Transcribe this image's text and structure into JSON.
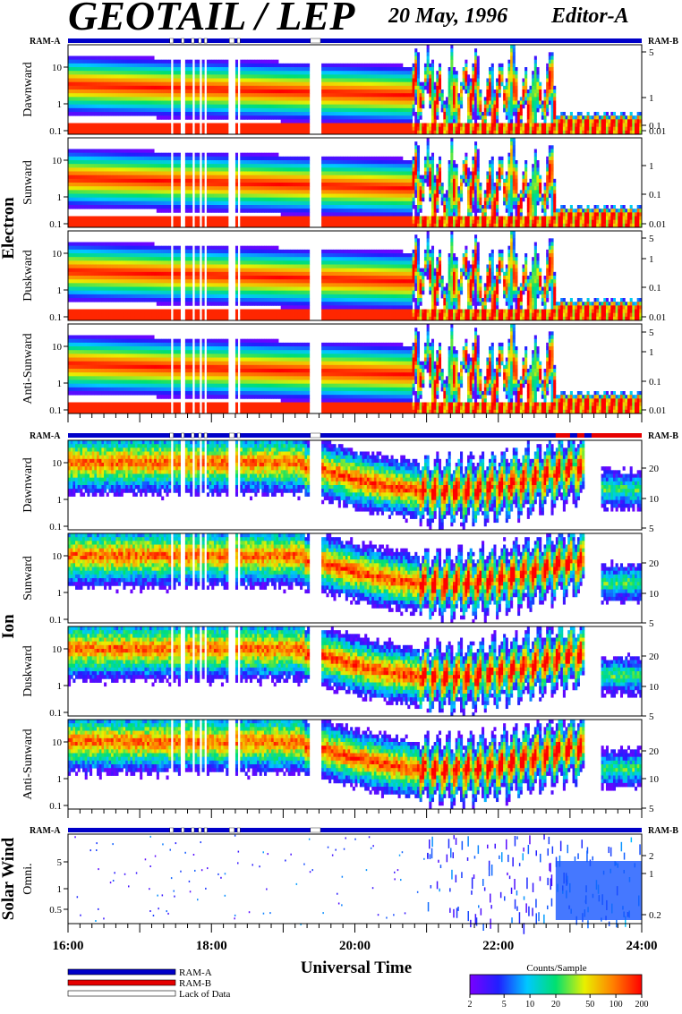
{
  "header": {
    "title": "GEOTAIL / LEP",
    "date": "20 May, 1996",
    "editor": "Editor-A"
  },
  "ram_a_label": "RAM-A",
  "ram_b_label": "RAM-B",
  "species_labels": [
    "Electron",
    "Ion",
    "Solar Wind"
  ],
  "x_axis": {
    "title": "Universal Time",
    "ticks": [
      "16:00",
      "18:00",
      "20:00",
      "22:00",
      "24:00"
    ],
    "range_hours": [
      16,
      24
    ]
  },
  "legend": {
    "items": [
      {
        "label": "RAM-A",
        "color": "#0000c8"
      },
      {
        "label": "RAM-B",
        "color": "#e60000"
      },
      {
        "label": "Lack of Data",
        "color": "#ffffff"
      }
    ]
  },
  "colorbar": {
    "title": "Counts/Sample",
    "ticks": [
      "2",
      "5",
      "10",
      "20",
      "50",
      "100",
      "200"
    ],
    "colors": [
      "#7a00ff",
      "#2020ff",
      "#00c8ff",
      "#00e070",
      "#e8f000",
      "#ff8000",
      "#ff0000"
    ]
  },
  "data_gaps_hours": [
    [
      17.42,
      17.47
    ],
    [
      17.58,
      17.62
    ],
    [
      17.72,
      17.76
    ],
    [
      17.82,
      17.86
    ],
    [
      17.9,
      17.94
    ],
    [
      18.25,
      18.32
    ],
    [
      18.36,
      18.4
    ],
    [
      19.38,
      19.52
    ]
  ],
  "chart_data": [
    {
      "type": "heatmap",
      "group": "Electron",
      "ylabel": "Dawnward",
      "left_ticks": [
        "10",
        "1",
        "0.1"
      ],
      "right_ticks": [
        "5",
        "1",
        "0.1",
        "0.01"
      ]
    },
    {
      "type": "heatmap",
      "group": "Electron",
      "ylabel": "Sunward",
      "left_ticks": [
        "10",
        "1",
        "0.1"
      ],
      "right_ticks": [
        "1",
        "0.1",
        "0.01"
      ]
    },
    {
      "type": "heatmap",
      "group": "Electron",
      "ylabel": "Duskward",
      "left_ticks": [
        "10",
        "1",
        "0.1"
      ],
      "right_ticks": [
        "5",
        "1",
        "0.1",
        "0.01"
      ]
    },
    {
      "type": "heatmap",
      "group": "Electron",
      "ylabel": "Anti-Sunward",
      "left_ticks": [
        "10",
        "1",
        "0.1"
      ],
      "right_ticks": [
        "5",
        "1",
        "0.1",
        "0.01"
      ]
    },
    {
      "type": "heatmap",
      "group": "Ion",
      "ylabel": "Dawnward",
      "left_ticks": [
        "10",
        "1",
        "0.1"
      ],
      "right_ticks": [
        "20",
        "10",
        "5"
      ]
    },
    {
      "type": "heatmap",
      "group": "Ion",
      "ylabel": "Sunward",
      "left_ticks": [
        "10",
        "1",
        "0.1"
      ],
      "right_ticks": [
        "20",
        "10",
        "5"
      ]
    },
    {
      "type": "heatmap",
      "group": "Ion",
      "ylabel": "Duskward",
      "left_ticks": [
        "10",
        "1",
        "0.1"
      ],
      "right_ticks": [
        "20",
        "10",
        "5"
      ]
    },
    {
      "type": "heatmap",
      "group": "Ion",
      "ylabel": "Anti-Sunward",
      "left_ticks": [
        "10",
        "1",
        "0.1"
      ],
      "right_ticks": [
        "20",
        "10",
        "5"
      ]
    },
    {
      "type": "heatmap",
      "group": "Solar Wind",
      "ylabel": "Omni.",
      "left_ticks": [
        "5",
        "1",
        "0.5"
      ],
      "right_ticks": [
        "2",
        "1",
        "0.2"
      ]
    }
  ]
}
